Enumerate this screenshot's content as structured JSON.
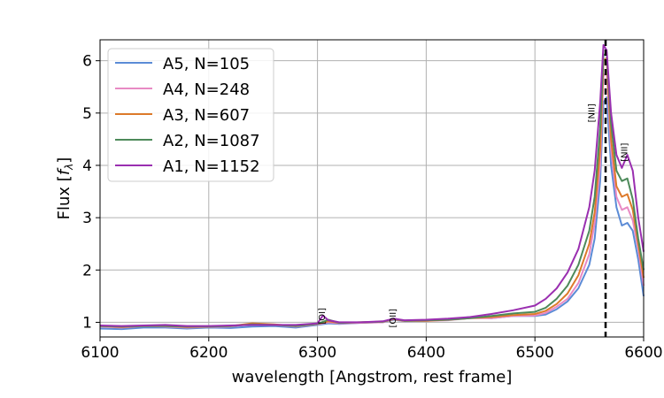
{
  "chart_data": {
    "type": "line",
    "xlabel": "wavelength [Angstrom, rest frame]",
    "ylabel_prefix": "Flux [",
    "ylabel_symbol": "f",
    "ylabel_subscript": "λ",
    "ylabel_suffix": "]",
    "xlim": [
      6100,
      6600
    ],
    "ylim": [
      0.72,
      6.4
    ],
    "x_ticks": [
      6100,
      6200,
      6300,
      6400,
      6500,
      6600
    ],
    "y_ticks": [
      1,
      2,
      3,
      4,
      5,
      6
    ],
    "grid": true,
    "legend_position": "upper-left",
    "series": [
      {
        "name": "A5, N=105",
        "color": "#5b8bd6",
        "x": [
          6100,
          6120,
          6140,
          6160,
          6180,
          6200,
          6220,
          6240,
          6260,
          6280,
          6300,
          6310,
          6320,
          6340,
          6360,
          6370,
          6380,
          6400,
          6420,
          6440,
          6460,
          6480,
          6500,
          6510,
          6520,
          6530,
          6540,
          6550,
          6555,
          6560,
          6563,
          6566,
          6570,
          6575,
          6580,
          6585,
          6590,
          6595,
          6600
        ],
        "y": [
          0.88,
          0.87,
          0.9,
          0.9,
          0.88,
          0.9,
          0.89,
          0.92,
          0.93,
          0.9,
          0.95,
          0.98,
          0.97,
          0.99,
          1.0,
          1.05,
          1.02,
          1.03,
          1.05,
          1.1,
          1.08,
          1.12,
          1.12,
          1.15,
          1.25,
          1.4,
          1.65,
          2.1,
          2.6,
          3.7,
          5.2,
          5.3,
          4.0,
          3.2,
          2.85,
          2.9,
          2.75,
          2.2,
          1.5
        ]
      },
      {
        "name": "A4, N=248",
        "color": "#e88ac4",
        "x": [
          6100,
          6120,
          6140,
          6160,
          6180,
          6200,
          6220,
          6240,
          6260,
          6280,
          6300,
          6310,
          6320,
          6340,
          6360,
          6370,
          6380,
          6400,
          6420,
          6440,
          6460,
          6480,
          6500,
          6510,
          6520,
          6530,
          6540,
          6550,
          6555,
          6560,
          6563,
          6566,
          6570,
          6575,
          6580,
          6585,
          6590,
          6595,
          6600
        ],
        "y": [
          0.92,
          0.9,
          0.93,
          0.92,
          0.9,
          0.91,
          0.92,
          0.97,
          0.95,
          0.92,
          0.96,
          1.0,
          0.98,
          0.99,
          1.0,
          1.06,
          1.02,
          1.03,
          1.04,
          1.08,
          1.08,
          1.12,
          1.13,
          1.18,
          1.3,
          1.45,
          1.75,
          2.3,
          2.9,
          4.0,
          5.7,
          5.8,
          4.3,
          3.4,
          3.15,
          3.2,
          2.95,
          2.4,
          1.7
        ]
      },
      {
        "name": "A3, N=607",
        "color": "#dd7a2a",
        "x": [
          6100,
          6120,
          6140,
          6160,
          6180,
          6200,
          6220,
          6240,
          6260,
          6280,
          6300,
          6310,
          6320,
          6340,
          6360,
          6370,
          6380,
          6400,
          6420,
          6440,
          6460,
          6480,
          6500,
          6510,
          6520,
          6530,
          6540,
          6550,
          6555,
          6560,
          6563,
          6566,
          6570,
          6575,
          6580,
          6585,
          6590,
          6595,
          6600
        ],
        "y": [
          0.93,
          0.91,
          0.93,
          0.93,
          0.91,
          0.92,
          0.93,
          0.98,
          0.96,
          0.93,
          0.97,
          1.02,
          0.99,
          1.0,
          1.01,
          1.06,
          1.03,
          1.03,
          1.05,
          1.08,
          1.1,
          1.14,
          1.16,
          1.22,
          1.35,
          1.55,
          1.9,
          2.5,
          3.1,
          4.3,
          6.0,
          6.05,
          4.5,
          3.6,
          3.4,
          3.45,
          3.15,
          2.5,
          1.85
        ]
      },
      {
        "name": "A2, N=1087",
        "color": "#4d8a5a",
        "x": [
          6100,
          6120,
          6140,
          6160,
          6180,
          6200,
          6220,
          6240,
          6260,
          6280,
          6300,
          6310,
          6320,
          6340,
          6360,
          6370,
          6380,
          6400,
          6420,
          6440,
          6460,
          6480,
          6500,
          6510,
          6520,
          6530,
          6540,
          6550,
          6555,
          6560,
          6563,
          6566,
          6570,
          6575,
          6580,
          6585,
          6590,
          6595,
          6600
        ],
        "y": [
          0.93,
          0.92,
          0.93,
          0.93,
          0.92,
          0.92,
          0.93,
          0.96,
          0.95,
          0.93,
          0.97,
          1.05,
          0.99,
          1.0,
          1.01,
          1.07,
          1.03,
          1.04,
          1.05,
          1.08,
          1.12,
          1.17,
          1.2,
          1.28,
          1.45,
          1.7,
          2.1,
          2.75,
          3.4,
          4.7,
          6.1,
          6.15,
          4.8,
          3.9,
          3.7,
          3.75,
          3.35,
          2.6,
          2.0
        ]
      },
      {
        "name": "A1, N=1152",
        "color": "#9a2fb0",
        "x": [
          6100,
          6120,
          6140,
          6160,
          6180,
          6200,
          6220,
          6240,
          6260,
          6280,
          6300,
          6305,
          6310,
          6320,
          6340,
          6360,
          6370,
          6380,
          6400,
          6420,
          6440,
          6460,
          6480,
          6500,
          6510,
          6520,
          6530,
          6540,
          6550,
          6555,
          6560,
          6563,
          6566,
          6570,
          6575,
          6580,
          6585,
          6590,
          6595,
          6600
        ],
        "y": [
          0.94,
          0.93,
          0.94,
          0.95,
          0.93,
          0.93,
          0.94,
          0.95,
          0.95,
          0.95,
          0.98,
          1.13,
          1.04,
          1.0,
          1.0,
          1.02,
          1.07,
          1.04,
          1.05,
          1.07,
          1.1,
          1.16,
          1.23,
          1.32,
          1.45,
          1.65,
          1.95,
          2.4,
          3.2,
          3.9,
          5.2,
          6.3,
          6.2,
          5.0,
          4.2,
          3.95,
          4.2,
          3.9,
          3.0,
          2.35
        ]
      }
    ],
    "vline": {
      "x": 6565,
      "color": "#000000",
      "style": "dashed"
    },
    "annotations": [
      {
        "text": "[OI]",
        "x": 6307,
        "y": 1.12
      },
      {
        "text": "[OII]",
        "x": 6372,
        "y": 1.08
      },
      {
        "text": "[NII]",
        "x": 6555,
        "y": 5.0
      },
      {
        "text": "[NII]",
        "x": 6585,
        "y": 4.25
      }
    ]
  }
}
